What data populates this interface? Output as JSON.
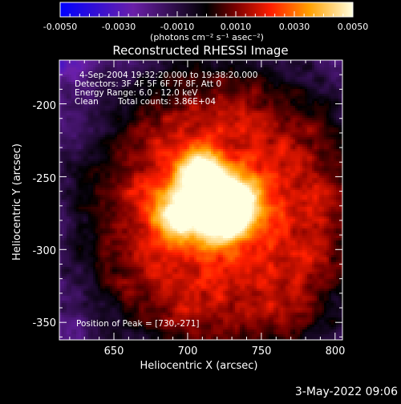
{
  "colorbar": {
    "ticks": [
      "-0.0050",
      "-0.0030",
      "-0.0010",
      "0.0010",
      "0.0030",
      "0.0050"
    ],
    "units_label": "(photons cm⁻² s⁻¹ asec⁻²)"
  },
  "chart_data": {
    "type": "heatmap",
    "title": "Reconstructed RHESSI Image",
    "xlabel": "Heliocentric X (arcsec)",
    "ylabel": "Heliocentric Y (arcsec)",
    "xlim": [
      613,
      805
    ],
    "ylim": [
      -362,
      -170
    ],
    "xticks": [
      650,
      700,
      750,
      800
    ],
    "yticks": [
      -200,
      -250,
      -300,
      -350
    ],
    "color_range": [
      -0.005,
      0.005
    ],
    "peak": [
      730,
      -271
    ],
    "annotations": {
      "time": "4-Sep-2004 19:32:20.000 to 19:38:20.000",
      "detectors": "Detectors: 3F 4F 5F 6F 7F 8F, Att 0",
      "energy": "Energy Range: 6.0 - 12.0 keV",
      "method": "Clean",
      "counts": "Total counts: 3.86E+04",
      "peak_text": "Position of Peak = [730,-271]"
    }
  },
  "footer": {
    "date": "3-May-2022 09:06"
  }
}
